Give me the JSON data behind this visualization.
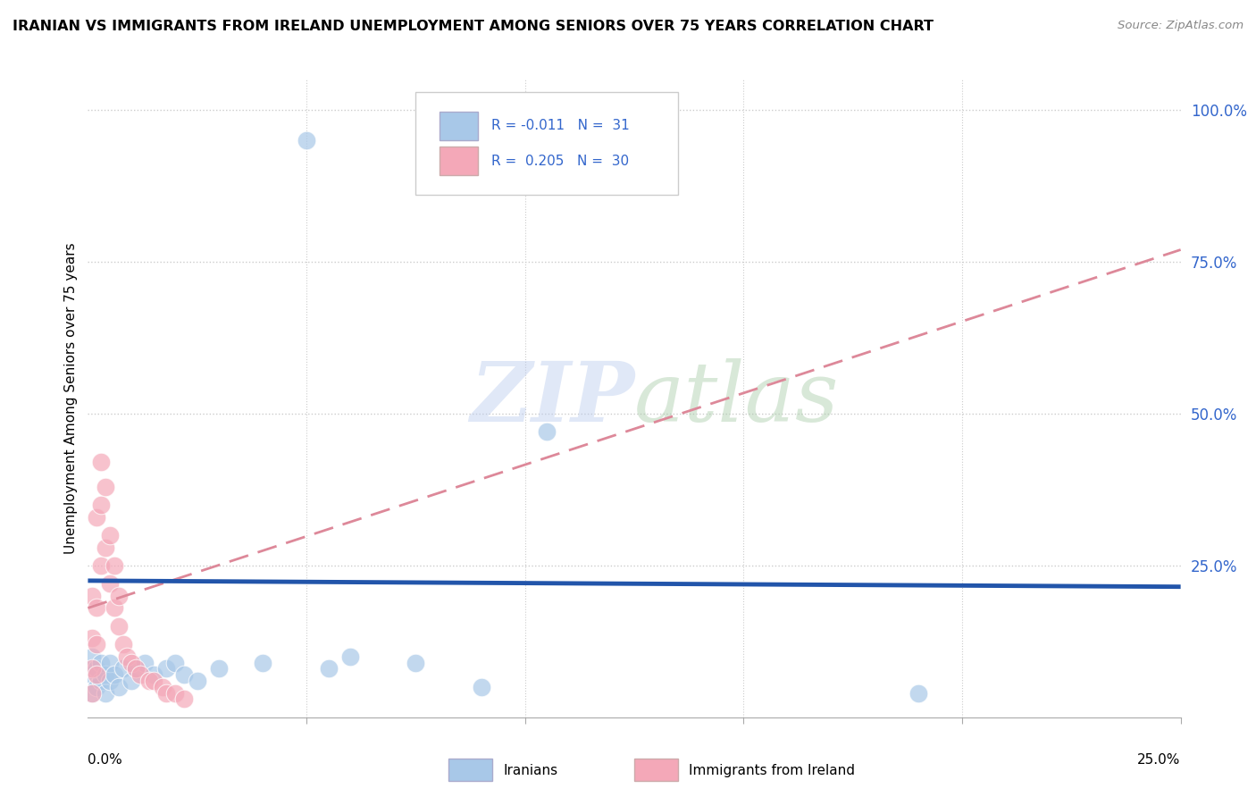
{
  "title": "IRANIAN VS IMMIGRANTS FROM IRELAND UNEMPLOYMENT AMONG SENIORS OVER 75 YEARS CORRELATION CHART",
  "source": "Source: ZipAtlas.com",
  "ylabel": "Unemployment Among Seniors over 75 years",
  "legend_iranians": "Iranians",
  "legend_ireland": "Immigrants from Ireland",
  "color_iranians": "#A8C8E8",
  "color_ireland": "#F4A8B8",
  "color_trend_iranians": "#2255AA",
  "color_trend_ireland": "#DD8899",
  "watermark": "ZIPatlas",
  "watermark_color": "#C8D8F0",
  "xmin": 0.0,
  "xmax": 0.25,
  "ymin": 0.0,
  "ymax": 1.05,
  "iranians_x": [
    0.001,
    0.001,
    0.001,
    0.002,
    0.002,
    0.003,
    0.003,
    0.004,
    0.004,
    0.005,
    0.005,
    0.006,
    0.007,
    0.008,
    0.01,
    0.011,
    0.013,
    0.015,
    0.018,
    0.02,
    0.022,
    0.025,
    0.03,
    0.04,
    0.05,
    0.055,
    0.06,
    0.075,
    0.09,
    0.105,
    0.19
  ],
  "iranians_y": [
    0.04,
    0.07,
    0.1,
    0.05,
    0.08,
    0.06,
    0.09,
    0.04,
    0.07,
    0.06,
    0.09,
    0.07,
    0.05,
    0.08,
    0.06,
    0.08,
    0.09,
    0.07,
    0.08,
    0.09,
    0.07,
    0.06,
    0.08,
    0.09,
    0.95,
    0.08,
    0.1,
    0.09,
    0.05,
    0.47,
    0.04
  ],
  "ireland_x": [
    0.001,
    0.001,
    0.001,
    0.001,
    0.002,
    0.002,
    0.002,
    0.002,
    0.003,
    0.003,
    0.003,
    0.004,
    0.004,
    0.005,
    0.005,
    0.006,
    0.006,
    0.007,
    0.007,
    0.008,
    0.009,
    0.01,
    0.011,
    0.012,
    0.014,
    0.015,
    0.017,
    0.018,
    0.02,
    0.022
  ],
  "ireland_y": [
    0.04,
    0.08,
    0.13,
    0.2,
    0.07,
    0.12,
    0.18,
    0.33,
    0.25,
    0.35,
    0.42,
    0.28,
    0.38,
    0.22,
    0.3,
    0.18,
    0.25,
    0.15,
    0.2,
    0.12,
    0.1,
    0.09,
    0.08,
    0.07,
    0.06,
    0.06,
    0.05,
    0.04,
    0.04,
    0.03
  ],
  "iran_trend_x0": 0.0,
  "iran_trend_x1": 0.25,
  "iran_trend_y0": 0.225,
  "iran_trend_y1": 0.215,
  "ire_trend_x0": 0.0,
  "ire_trend_x1": 0.25,
  "ire_trend_y0": 0.18,
  "ire_trend_y1": 0.77
}
